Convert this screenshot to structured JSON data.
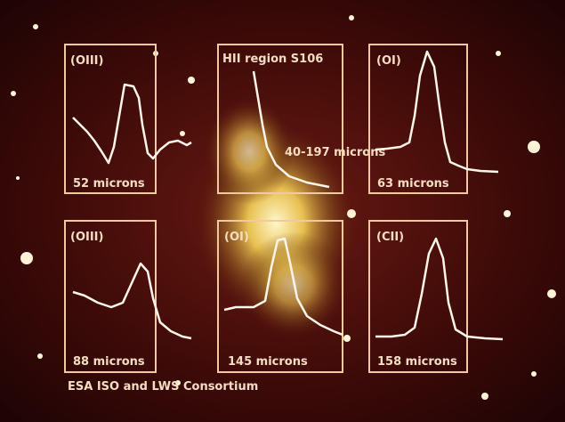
{
  "panels": [
    {
      "label": "(OIII)",
      "wavelength": "52 microns"
    },
    {
      "label": "HII region S106",
      "wavelength": "40-197 microns"
    },
    {
      "label": "(OI)",
      "wavelength": "63 microns"
    },
    {
      "label": "(OIII)",
      "wavelength": "88 microns"
    },
    {
      "label": "(OI)",
      "wavelength": "145 microns"
    },
    {
      "label": "(CII)",
      "wavelength": "158 microns"
    }
  ],
  "credit": "ESA ISO and LWS Consortium"
}
